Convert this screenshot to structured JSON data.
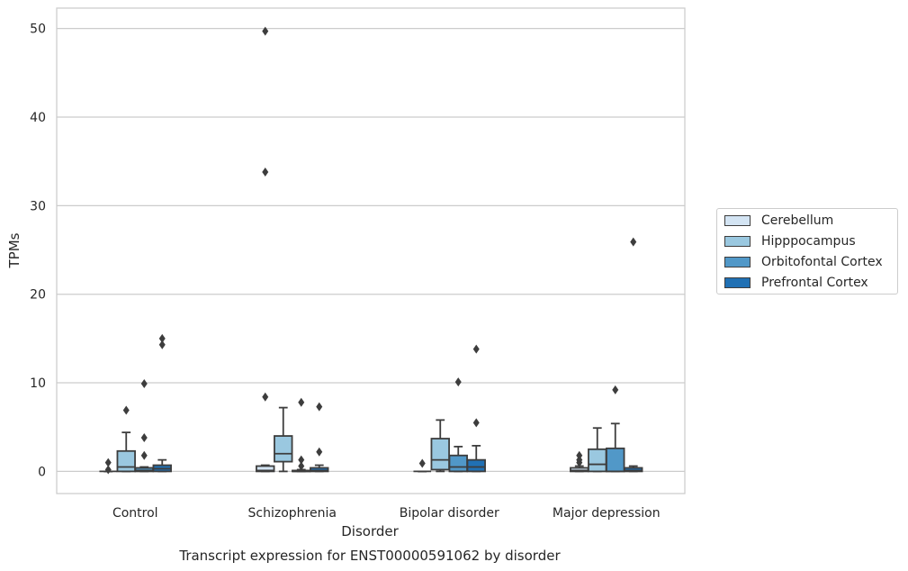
{
  "chart_data": {
    "type": "box",
    "title": "Transcript expression for ENST00000591062 by disorder",
    "xlabel": "Disorder",
    "ylabel": "TPMs",
    "ylim": [
      -2.5,
      52.3
    ],
    "yticks": [
      0,
      10,
      20,
      30,
      40,
      50
    ],
    "grid": "horizontal",
    "legend_position": "right",
    "categories": [
      "Control",
      "Schizophrenia",
      "Bipolar disorder",
      "Major depression"
    ],
    "series": [
      {
        "name": "Cerebellum",
        "color": "#d3e4f3",
        "boxes": [
          {
            "whislo": 0,
            "q1": 0,
            "med": 0,
            "q3": 0,
            "whishi": 0,
            "fliers": [
              1.0,
              0.2
            ]
          },
          {
            "whislo": 0,
            "q1": 0,
            "med": 0.1,
            "q3": 0.6,
            "whishi": 0.7,
            "fliers": [
              8.4,
              33.8,
              49.7
            ]
          },
          {
            "whislo": 0,
            "q1": 0,
            "med": 0,
            "q3": 0,
            "whishi": 0,
            "fliers": [
              0.9
            ]
          },
          {
            "whislo": 0,
            "q1": 0,
            "med": 0.1,
            "q3": 0.4,
            "whishi": 0.6,
            "fliers": [
              1.0,
              1.3,
              1.8
            ]
          }
        ]
      },
      {
        "name": "Hipppocampus",
        "color": "#9ac8e0",
        "boxes": [
          {
            "whislo": 0,
            "q1": 0,
            "med": 0.5,
            "q3": 2.3,
            "whishi": 4.4,
            "fliers": [
              6.9
            ]
          },
          {
            "whislo": 0,
            "q1": 1.1,
            "med": 2.0,
            "q3": 4.0,
            "whishi": 7.2,
            "fliers": []
          },
          {
            "whislo": 0,
            "q1": 0.2,
            "med": 1.3,
            "q3": 3.7,
            "whishi": 5.8,
            "fliers": []
          },
          {
            "whislo": 0,
            "q1": 0,
            "med": 0.8,
            "q3": 2.5,
            "whishi": 4.9,
            "fliers": []
          }
        ]
      },
      {
        "name": "Orbitofontal Cortex",
        "color": "#5198c8",
        "boxes": [
          {
            "whislo": 0,
            "q1": 0,
            "med": 0.1,
            "q3": 0.4,
            "whishi": 0.5,
            "fliers": [
              1.8,
              3.8,
              9.9
            ]
          },
          {
            "whislo": 0,
            "q1": 0,
            "med": 0,
            "q3": 0.1,
            "whishi": 0.2,
            "fliers": [
              0.6,
              1.3,
              7.8
            ]
          },
          {
            "whislo": 0,
            "q1": 0,
            "med": 0.5,
            "q3": 1.8,
            "whishi": 2.8,
            "fliers": [
              10.1
            ]
          },
          {
            "whislo": 0,
            "q1": 0,
            "med": 0,
            "q3": 2.6,
            "whishi": 5.4,
            "fliers": [
              9.2
            ]
          }
        ]
      },
      {
        "name": "Prefrontal Cortex",
        "color": "#2070b4",
        "boxes": [
          {
            "whislo": 0,
            "q1": 0,
            "med": 0.3,
            "q3": 0.7,
            "whishi": 1.3,
            "fliers": [
              14.3,
              15.0
            ]
          },
          {
            "whislo": 0,
            "q1": 0,
            "med": 0.1,
            "q3": 0.4,
            "whishi": 0.7,
            "fliers": [
              2.2,
              7.3
            ]
          },
          {
            "whislo": 0,
            "q1": 0,
            "med": 0.5,
            "q3": 1.3,
            "whishi": 2.9,
            "fliers": [
              5.5,
              13.8
            ]
          },
          {
            "whislo": 0,
            "q1": 0,
            "med": 0.1,
            "q3": 0.4,
            "whishi": 0.6,
            "fliers": [
              25.9
            ]
          }
        ]
      }
    ]
  }
}
